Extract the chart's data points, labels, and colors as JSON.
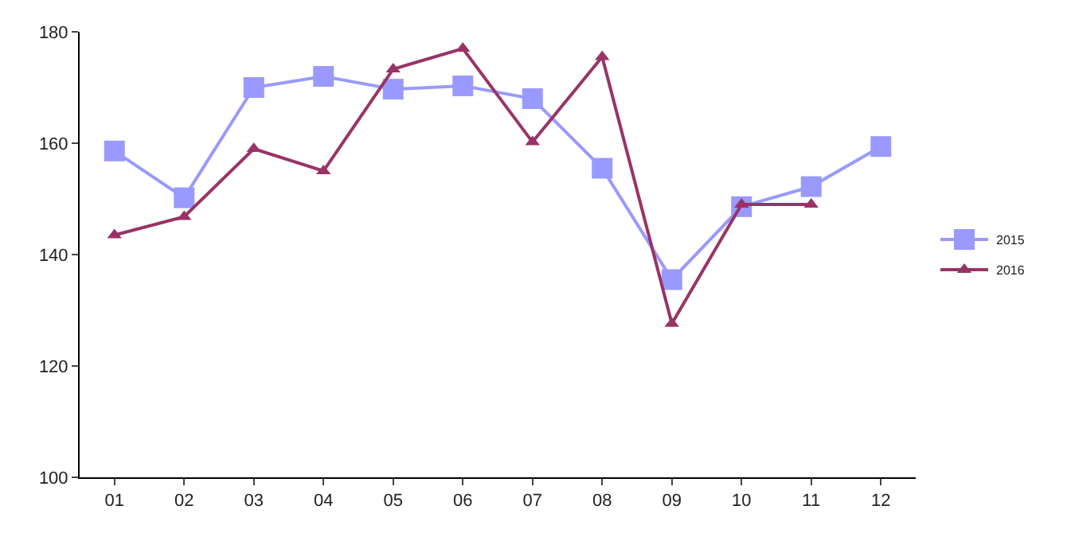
{
  "chart_data": {
    "type": "line",
    "categories": [
      "01",
      "02",
      "03",
      "04",
      "05",
      "06",
      "07",
      "08",
      "09",
      "10",
      "11",
      "12"
    ],
    "series": [
      {
        "name": "2015",
        "color": "#9999ff",
        "marker": "square",
        "values": [
          158.6,
          150.2,
          170,
          172,
          169.7,
          170.3,
          168,
          155.5,
          135.5,
          148.6,
          152.2,
          159.4
        ]
      },
      {
        "name": "2016",
        "color": "#993366",
        "marker": "triangle",
        "values": [
          143.5,
          146.8,
          159,
          155,
          173.3,
          177,
          160.2,
          175.5,
          127.6,
          149,
          149,
          null
        ]
      }
    ],
    "ylim": [
      100,
      180
    ],
    "yticks": [
      100,
      120,
      140,
      160,
      180
    ],
    "grid": false,
    "legend": "right"
  }
}
